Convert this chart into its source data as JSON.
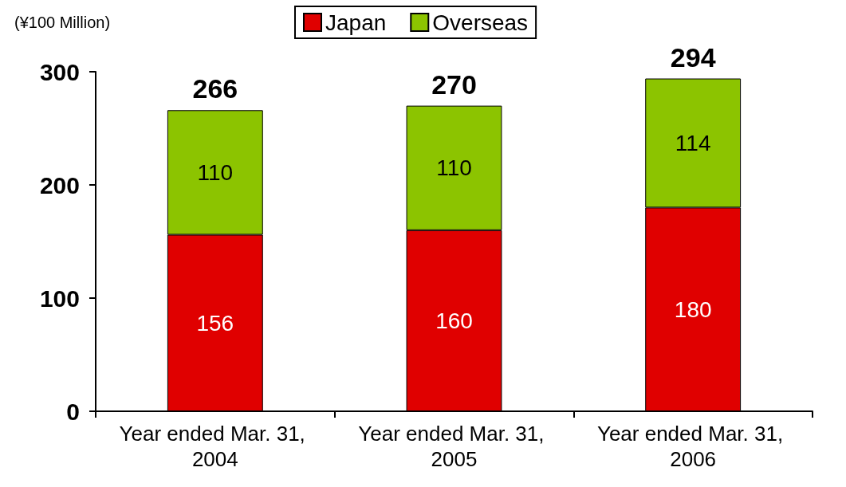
{
  "chart_data": {
    "type": "bar",
    "stacked": true,
    "ylabel": "(¥100 Million)",
    "categories": [
      "Year ended Mar. 31, 2004",
      "Year ended Mar. 31, 2005",
      "Year ended Mar. 31, 2006"
    ],
    "series": [
      {
        "name": "Japan",
        "color": "#e00000",
        "values": [
          156,
          160,
          180
        ]
      },
      {
        "name": "Overseas",
        "color": "#8cc400",
        "values": [
          110,
          110,
          114
        ]
      }
    ],
    "totals": [
      "266",
      "270",
      "294"
    ],
    "ylim": [
      0,
      300
    ],
    "yticks": [
      0,
      100,
      200,
      300
    ],
    "grid": false,
    "legend": "top",
    "data_labels": true
  }
}
